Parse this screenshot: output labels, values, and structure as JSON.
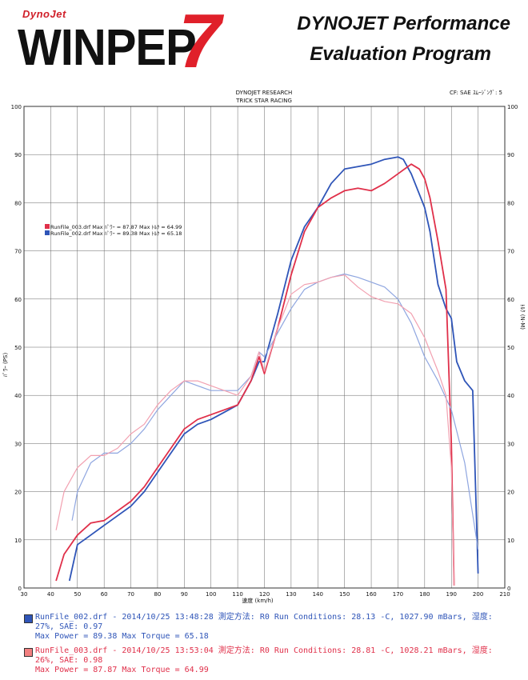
{
  "header": {
    "logo_small": "DynoJet",
    "logo_main": "WINPEP",
    "logo_num": "7",
    "title_line1": "DYNOJET Performance",
    "title_line2": "Evaluation Program"
  },
  "chart_meta": {
    "company": "DYNOJET RESEARCH",
    "shop": "TRICK STAR RACING",
    "cf_note": "CF: SAE ｽﾑｰｼﾞﾝｸﾞ: 5",
    "inline_legend": [
      "RunFile_003.drf Max ﾊﾟﾜｰ = 87.87    Max ﾄﾙｸ = 64.99",
      "RunFile_002.drf Max ﾊﾟﾜｰ = 89.38    Max ﾄﾙｸ = 65.18"
    ]
  },
  "colors": {
    "run002": "#2f55b8",
    "run002_light": "#8fa6e0",
    "run003": "#e0304a",
    "run003_light": "#f2a0b0",
    "grid": "#555555"
  },
  "runs": [
    {
      "line1": "RunFile_002.drf - 2014/10/25 13:48:28  測定方法: R0  Run Conditions: 28.13 -C, 1027.90 mBars,  湿度:",
      "line2": "27%, SAE: 0.97",
      "line3": "Max Power = 89.38  Max Torque = 65.18",
      "color": "#2f55b8"
    },
    {
      "line1": "RunFile_003.drf - 2014/10/25 13:53:04  測定方法: R0  Run Conditions: 28.81 -C, 1028.21 mBars,  湿度:",
      "line2": "26%, SAE: 0.98",
      "line3": "Max Power = 87.87  Max Torque = 64.99",
      "color": "#e0304a"
    }
  ],
  "chart_data": {
    "type": "line",
    "xlabel": "速度 (km/h)",
    "ylabel": "ﾊﾟﾜｰ (PS)",
    "y2label": "ﾄﾙｸ (N-M)",
    "xlim": [
      30,
      210
    ],
    "ylim": [
      0,
      100
    ],
    "xticks": [
      30,
      40,
      50,
      60,
      70,
      80,
      90,
      100,
      110,
      120,
      130,
      140,
      150,
      160,
      170,
      180,
      190,
      200,
      210
    ],
    "yticks": [
      0,
      10,
      20,
      30,
      40,
      50,
      60,
      70,
      80,
      90,
      100
    ],
    "grid": true,
    "series": [
      {
        "name": "RunFile_002.drf",
        "kind": "power",
        "color": "#2f55b8",
        "x": [
          47,
          50,
          55,
          60,
          65,
          70,
          75,
          80,
          85,
          90,
          95,
          100,
          105,
          110,
          115,
          118,
          120,
          125,
          130,
          135,
          140,
          145,
          150,
          155,
          160,
          165,
          170,
          172,
          175,
          180,
          182,
          185,
          188,
          190,
          192,
          195,
          198,
          200
        ],
        "values": [
          1.5,
          9,
          11,
          13,
          15,
          17,
          20,
          24,
          28,
          32,
          34,
          35,
          36.5,
          38,
          43,
          47,
          47,
          57,
          68,
          75,
          79,
          84,
          87,
          87.5,
          88,
          89,
          89.5,
          89,
          86,
          79,
          74,
          63,
          58,
          56,
          47,
          43,
          41,
          3
        ]
      },
      {
        "name": "RunFile_003.drf",
        "kind": "power",
        "color": "#e0304a",
        "x": [
          42,
          45,
          50,
          55,
          60,
          65,
          70,
          75,
          80,
          85,
          90,
          95,
          100,
          105,
          110,
          115,
          118,
          120,
          125,
          130,
          135,
          140,
          145,
          150,
          155,
          160,
          165,
          170,
          175,
          178,
          180,
          182,
          185,
          188,
          190,
          191
        ],
        "values": [
          1.5,
          7,
          11,
          13.5,
          14,
          16,
          18,
          21,
          25,
          29,
          33,
          35,
          36,
          37,
          38,
          43,
          48,
          44.5,
          54,
          65,
          74,
          79,
          81,
          82.5,
          83,
          82.5,
          84,
          86,
          88,
          87,
          85,
          81,
          72,
          62,
          30,
          0.5
        ]
      },
      {
        "name": "RunFile_002.drf",
        "kind": "torque",
        "color": "#8fa6e0",
        "x": [
          48,
          50,
          55,
          60,
          65,
          70,
          75,
          80,
          85,
          90,
          95,
          100,
          105,
          110,
          115,
          118,
          120,
          125,
          130,
          135,
          140,
          145,
          150,
          155,
          160,
          165,
          170,
          175,
          180,
          185,
          190,
          195,
          200
        ],
        "values": [
          14,
          20,
          26,
          28,
          28,
          30,
          33,
          37,
          40,
          43,
          42,
          41,
          41,
          41,
          44,
          49,
          48,
          53,
          58,
          62,
          63.5,
          64.5,
          65.2,
          64.5,
          63.5,
          62.5,
          60,
          55,
          48,
          43,
          37,
          26,
          8
        ]
      },
      {
        "name": "RunFile_003.drf",
        "kind": "torque",
        "color": "#f2a0b0",
        "x": [
          42,
          45,
          50,
          55,
          60,
          65,
          70,
          75,
          80,
          85,
          90,
          95,
          100,
          105,
          110,
          115,
          118,
          120,
          125,
          130,
          135,
          140,
          145,
          150,
          155,
          160,
          165,
          170,
          175,
          180,
          185,
          188,
          190,
          191
        ],
        "values": [
          12,
          20,
          25,
          27.5,
          27.5,
          29,
          32,
          34,
          38,
          41,
          43,
          43,
          42,
          41,
          40,
          44,
          49,
          45,
          54,
          61,
          63,
          63.5,
          64.5,
          65,
          62.5,
          60.5,
          59.5,
          59,
          57,
          52,
          45,
          40,
          25,
          0.5
        ]
      }
    ]
  }
}
